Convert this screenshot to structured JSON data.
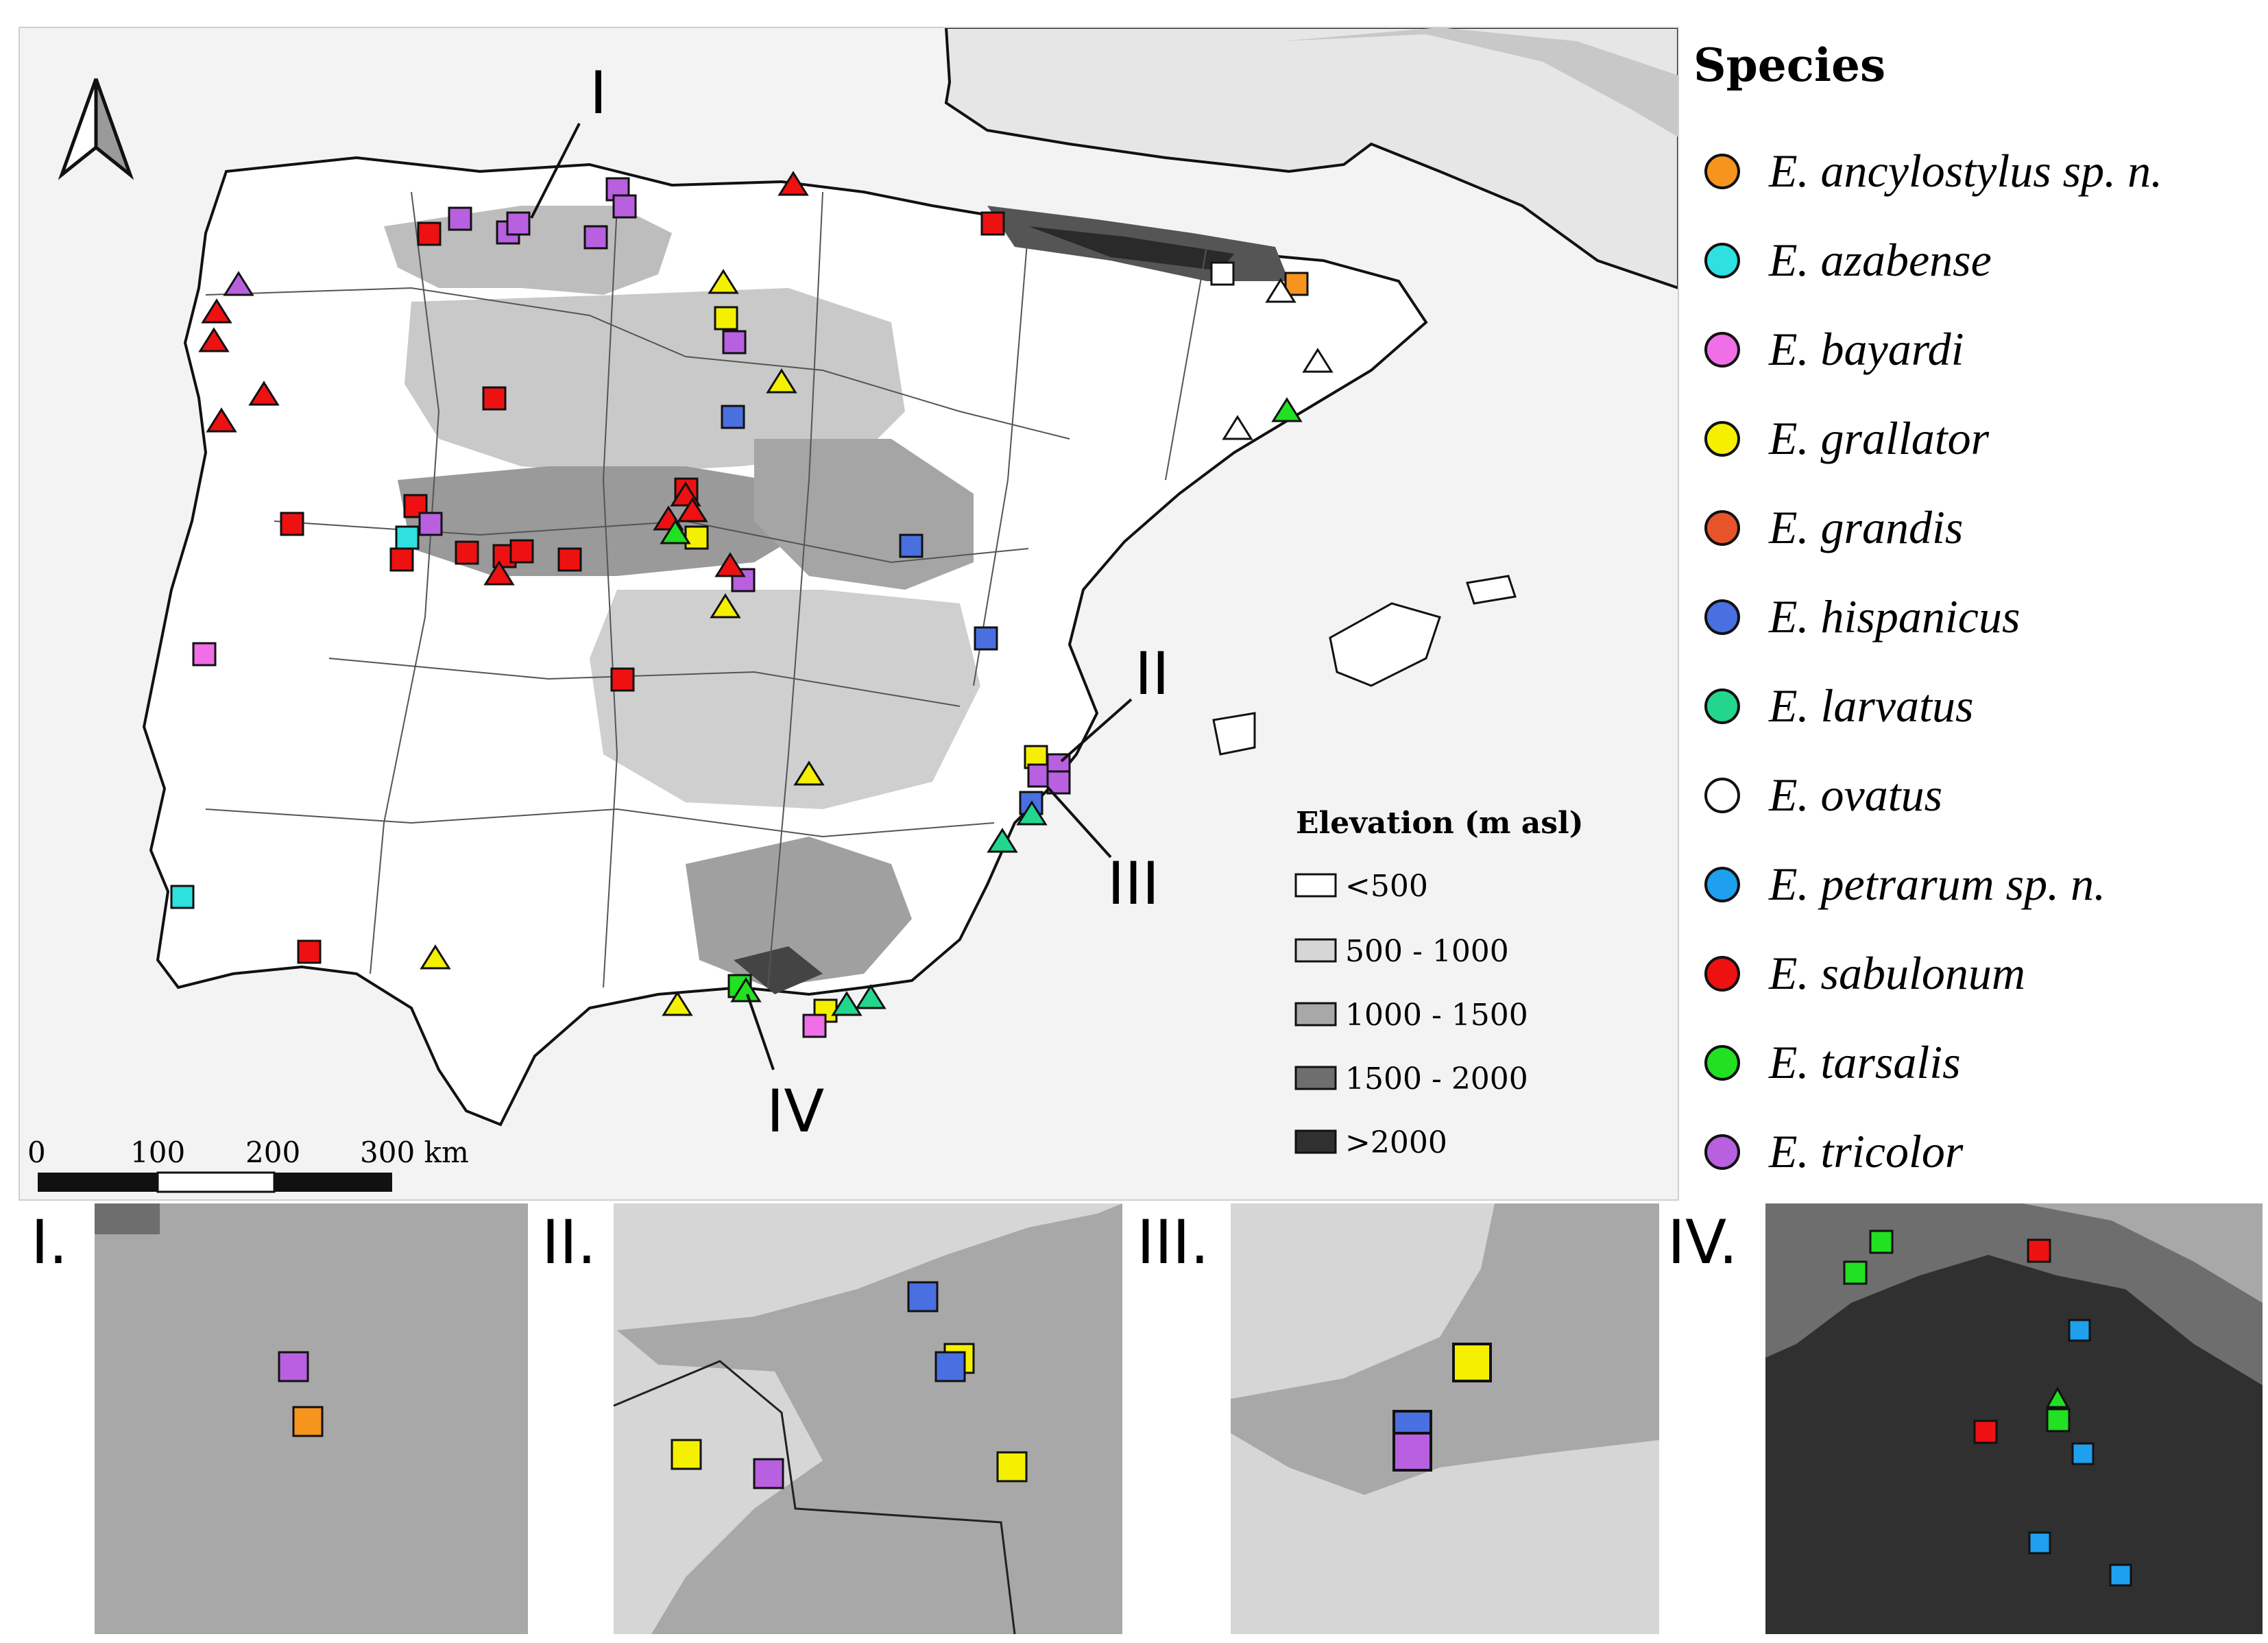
{
  "legend": {
    "title": "Species",
    "items": [
      {
        "name": "E. ancylostylus sp. n.",
        "color": "#f7941d"
      },
      {
        "name": "E. azabense",
        "color": "#2fe0e0"
      },
      {
        "name": "E. bayardi",
        "color": "#f06ee6"
      },
      {
        "name": "E. grallator",
        "color": "#f5f000"
      },
      {
        "name": "E. grandis",
        "color": "#e8542a"
      },
      {
        "name": "E. hispanicus",
        "color": "#4a6fe0"
      },
      {
        "name": "E. larvatus",
        "color": "#22d68e"
      },
      {
        "name": "E. ovatus",
        "color": "#ffffff"
      },
      {
        "name": "E. petrarum sp. n.",
        "color": "#1ea0ee"
      },
      {
        "name": "E. sabulonum",
        "color": "#ee1111"
      },
      {
        "name": "E. tarsalis",
        "color": "#22e022"
      },
      {
        "name": "E. tricolor",
        "color": "#b860e0"
      }
    ]
  },
  "elevation": {
    "title": "Elevation (m asl)",
    "classes": [
      {
        "label": "<500",
        "color": "#ffffff"
      },
      {
        "label": "500 - 1000",
        "color": "#d6d6d6"
      },
      {
        "label": "1000 - 1500",
        "color": "#a8a8a8"
      },
      {
        "label": "1500 - 2000",
        "color": "#6e6e6e"
      },
      {
        "label": ">2000",
        "color": "#303030"
      }
    ]
  },
  "scale_bar": {
    "ticks": [
      "0",
      "100",
      "200",
      "300 km"
    ]
  },
  "callouts": [
    "I",
    "II",
    "III",
    "IV"
  ],
  "insets": [
    {
      "label": "I."
    },
    {
      "label": "II."
    },
    {
      "label": "III."
    },
    {
      "label": "IV."
    }
  ]
}
